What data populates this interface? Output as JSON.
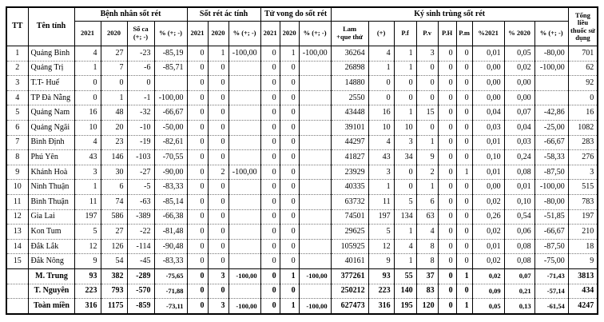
{
  "colors": {
    "background": "#ffffff",
    "border": "#000000",
    "row_divider": "#777777",
    "text": "#000000"
  },
  "table": {
    "header": {
      "tt": "TT",
      "province": "Tên tỉnh",
      "groups": [
        {
          "label": "Bệnh nhân sốt rét",
          "cols": [
            "2021",
            "2020",
            "Số ca\n(+; -)",
            "% (+; -)"
          ]
        },
        {
          "label": "Sốt rét ác tính",
          "cols": [
            "2021",
            "2020",
            "% (+; -)"
          ]
        },
        {
          "label": "Tử vong do sốt rét",
          "cols": [
            "2021",
            "2020",
            "% (+; -)"
          ]
        },
        {
          "label": "Ký sinh trùng sốt rét",
          "cols": [
            "Lam\n+que thử",
            "(+)",
            "P.f",
            "P.v",
            "P.H",
            "P.m",
            "%2021",
            "% 2020",
            "% (+; -)"
          ]
        }
      ],
      "total": "Tổng liều thuốc sử dụng"
    },
    "rows": [
      {
        "tt": "1",
        "province": "Quảng Bình",
        "cells": [
          "4",
          "27",
          "-23",
          "-85,19",
          "0",
          "1",
          "-100,00",
          "0",
          "1",
          "-100,00",
          "36264",
          "4",
          "1",
          "3",
          "0",
          "0",
          "0,01",
          "0,05",
          "-80,00",
          "701"
        ]
      },
      {
        "tt": "2",
        "province": "Quảng Trị",
        "cells": [
          "1",
          "7",
          "-6",
          "-85,71",
          "0",
          "0",
          "",
          "0",
          "0",
          "",
          "26898",
          "1",
          "1",
          "0",
          "0",
          "0",
          "0,00",
          "0,02",
          "-100,00",
          "62"
        ]
      },
      {
        "tt": "3",
        "province": "T.T- Huế",
        "cells": [
          "0",
          "0",
          "0",
          "",
          "0",
          "0",
          "",
          "0",
          "0",
          "",
          "14880",
          "0",
          "0",
          "0",
          "0",
          "0",
          "0,00",
          "0,00",
          "",
          "92"
        ]
      },
      {
        "tt": "4",
        "province": "TP Đà Nẵng",
        "cells": [
          "0",
          "1",
          "-1",
          "-100,00",
          "0",
          "0",
          "",
          "0",
          "0",
          "",
          "2550",
          "0",
          "0",
          "0",
          "0",
          "0",
          "0,00",
          "0,00",
          "",
          "0"
        ]
      },
      {
        "tt": "5",
        "province": "Quảng Nam",
        "cells": [
          "16",
          "48",
          "-32",
          "-66,67",
          "0",
          "0",
          "",
          "0",
          "0",
          "",
          "43448",
          "16",
          "1",
          "15",
          "0",
          "0",
          "0,04",
          "0,07",
          "-42,86",
          "16"
        ]
      },
      {
        "tt": "6",
        "province": "Quảng Ngãi",
        "cells": [
          "10",
          "20",
          "-10",
          "-50,00",
          "0",
          "0",
          "",
          "0",
          "0",
          "",
          "39101",
          "10",
          "10",
          "0",
          "0",
          "0",
          "0,03",
          "0,04",
          "-25,00",
          "1082"
        ]
      },
      {
        "tt": "7",
        "province": "Bình Định",
        "cells": [
          "4",
          "23",
          "-19",
          "-82,61",
          "0",
          "0",
          "",
          "0",
          "0",
          "",
          "44297",
          "4",
          "3",
          "1",
          "0",
          "0",
          "0,01",
          "0,03",
          "-66,67",
          "283"
        ]
      },
      {
        "tt": "8",
        "province": "Phú Yên",
        "cells": [
          "43",
          "146",
          "-103",
          "-70,55",
          "0",
          "0",
          "",
          "0",
          "0",
          "",
          "41827",
          "43",
          "34",
          "9",
          "0",
          "0",
          "0,10",
          "0,24",
          "-58,33",
          "276"
        ]
      },
      {
        "tt": "9",
        "province": "Khánh Hoà",
        "cells": [
          "3",
          "30",
          "-27",
          "-90,00",
          "0",
          "2",
          "-100,00",
          "0",
          "0",
          "",
          "23929",
          "3",
          "0",
          "2",
          "0",
          "1",
          "0,01",
          "0,08",
          "-87,50",
          "3"
        ]
      },
      {
        "tt": "10",
        "province": "Ninh Thuận",
        "cells": [
          "1",
          "6",
          "-5",
          "-83,33",
          "0",
          "0",
          "",
          "0",
          "0",
          "",
          "40335",
          "1",
          "0",
          "1",
          "0",
          "0",
          "0,00",
          "0,01",
          "-100,00",
          "515"
        ]
      },
      {
        "tt": "11",
        "province": "Bình Thuận",
        "cells": [
          "11",
          "74",
          "-63",
          "-85,14",
          "0",
          "0",
          "",
          "0",
          "0",
          "",
          "63732",
          "11",
          "5",
          "6",
          "0",
          "0",
          "0,02",
          "0,10",
          "-80,00",
          "783"
        ]
      },
      {
        "tt": "12",
        "province": "Gia Lai",
        "cells": [
          "197",
          "586",
          "-389",
          "-66,38",
          "0",
          "0",
          "",
          "0",
          "0",
          "",
          "74501",
          "197",
          "134",
          "63",
          "0",
          "0",
          "0,26",
          "0,54",
          "-51,85",
          "197"
        ]
      },
      {
        "tt": "13",
        "province": "Kon Tum",
        "cells": [
          "5",
          "27",
          "-22",
          "-81,48",
          "0",
          "0",
          "",
          "0",
          "0",
          "",
          "29625",
          "5",
          "1",
          "4",
          "0",
          "0",
          "0,02",
          "0,06",
          "-66,67",
          "210"
        ]
      },
      {
        "tt": "14",
        "province": "Đắk Lắk",
        "cells": [
          "12",
          "126",
          "-114",
          "-90,48",
          "0",
          "0",
          "",
          "0",
          "0",
          "",
          "105925",
          "12",
          "4",
          "8",
          "0",
          "0",
          "0,01",
          "0,08",
          "-87,50",
          "18"
        ]
      },
      {
        "tt": "15",
        "province": "Đắk Nông",
        "cells": [
          "9",
          "54",
          "-45",
          "-83,33",
          "0",
          "0",
          "",
          "0",
          "0",
          "",
          "40161",
          "9",
          "1",
          "8",
          "0",
          "0",
          "0,02",
          "0,08",
          "-75,00",
          "9"
        ]
      }
    ],
    "summary_rows": [
      {
        "tt": "",
        "province": "M. Trung",
        "cells": [
          "93",
          "382",
          "-289",
          "-75,65",
          "0",
          "3",
          "-100,00",
          "0",
          "1",
          "-100,00",
          "377261",
          "93",
          "55",
          "37",
          "0",
          "1",
          "0,02",
          "0,07",
          "-71,43",
          "3813"
        ]
      },
      {
        "tt": "",
        "province": "T. Nguyên",
        "cells": [
          "223",
          "793",
          "-570",
          "-71,88",
          "0",
          "0",
          "",
          "0",
          "0",
          "",
          "250212",
          "223",
          "140",
          "83",
          "0",
          "0",
          "0,09",
          "0,21",
          "-57,14",
          "434"
        ]
      },
      {
        "tt": "",
        "province": "Toàn miền",
        "cells": [
          "316",
          "1175",
          "-859",
          "-73,11",
          "0",
          "3",
          "-100,00",
          "0",
          "1",
          "-100,00",
          "627473",
          "316",
          "195",
          "120",
          "0",
          "1",
          "0,05",
          "0,13",
          "-61,54",
          "4247"
        ]
      }
    ]
  }
}
